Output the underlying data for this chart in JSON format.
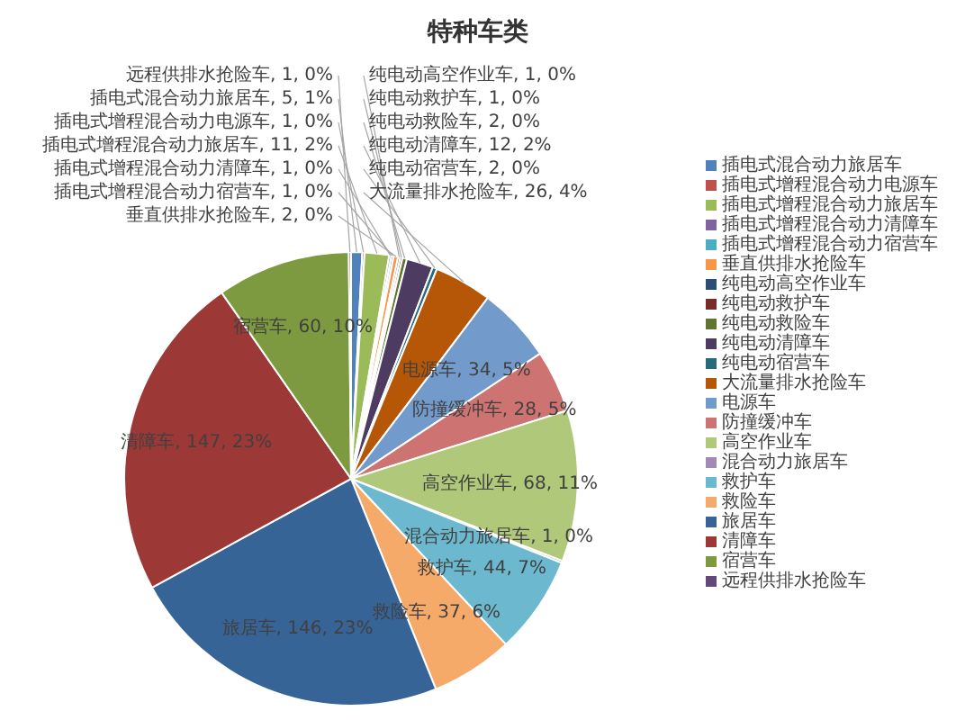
{
  "chart_data": {
    "type": "pie",
    "title": "特种车类",
    "categories": [
      "插电式混合动力旅居车",
      "插电式增程混合动力电源车",
      "插电式增程混合动力旅居车",
      "插电式增程混合动力清障车",
      "插电式增程混合动力宿营车",
      "垂直供排水抢险车",
      "纯电动高空作业车",
      "纯电动救护车",
      "纯电动救险车",
      "纯电动清障车",
      "纯电动宿营车",
      "大流量排水抢险车",
      "电源车",
      "防撞缓冲车",
      "高空作业车",
      "混合动力旅居车",
      "救护车",
      "救险车",
      "旅居车",
      "清障车",
      "宿营车",
      "远程供排水抢险车"
    ],
    "values": [
      5,
      1,
      11,
      1,
      1,
      2,
      1,
      1,
      2,
      12,
      2,
      26,
      34,
      28,
      68,
      1,
      44,
      37,
      146,
      147,
      60,
      1
    ],
    "colors": [
      "#4f81bd",
      "#c0504d",
      "#9bbb59",
      "#8064a2",
      "#4bacc6",
      "#f79646",
      "#2c4d75",
      "#772c2a",
      "#5f7530",
      "#4d3b62",
      "#276a7c",
      "#b65708",
      "#729aca",
      "#cd7371",
      "#afc87a",
      "#a18ab7",
      "#6cb9cf",
      "#f6aa6a",
      "#376496",
      "#9c3836",
      "#7e9a40",
      "#5f4a7a"
    ],
    "value_labels": [
      "插电式混合动力旅居车, 5, 1%",
      "插电式增程混合动力电源车, 1, 0%",
      "插电式增程混合动力旅居车, 11, 2%",
      "插电式增程混合动力清障车, 1, 0%",
      "插电式增程混合动力宿营车, 1, 0%",
      "垂直供排水抢险车, 2, 0%",
      "纯电动高空作业车, 1, 0%",
      "纯电动救护车, 1, 0%",
      "纯电动救险车, 2, 0%",
      "纯电动清障车, 12, 2%",
      "纯电动宿营车, 2, 0%",
      "大流量排水抢险车, 26, 4%",
      "电源车, 34, 5%",
      "防撞缓冲车, 28, 5%",
      "高空作业车, 68, 11%",
      "混合动力旅居车, 1, 0%",
      "救护车, 44, 7%",
      "救险车, 37, 6%",
      "旅居车, 146, 23%",
      "清障车, 147, 23%",
      "宿营车, 60, 10%",
      "远程供排水抢险车, 1, 0%"
    ],
    "legend": "right"
  }
}
